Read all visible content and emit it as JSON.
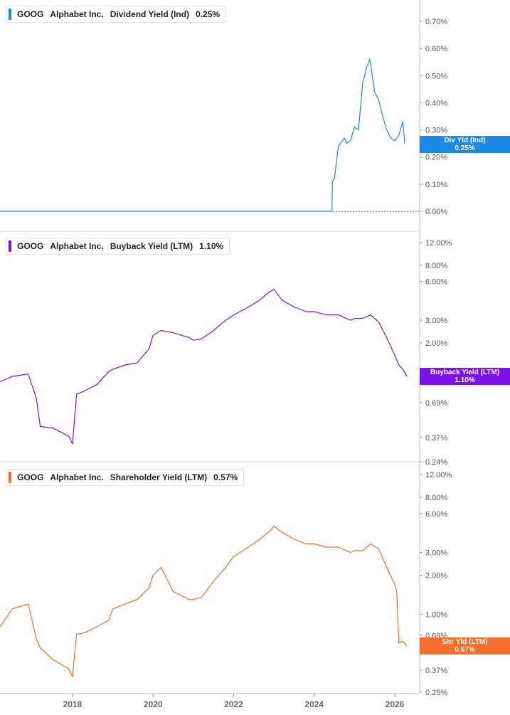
{
  "x_axis": {
    "tick_labels": [
      "2018",
      "2020",
      "2022",
      "2024",
      "2026"
    ]
  },
  "panels": [
    {
      "legend": {
        "ticker": "GOOG",
        "company": "Alphabet Inc.",
        "metric": "Dividend Yield (Ind)",
        "value": "0.25%"
      },
      "tag": {
        "name": "Div Yld (Ind)",
        "value": "0.25%"
      },
      "tick_labels": [
        "0.70%",
        "0.60%",
        "0.50%",
        "0.40%",
        "0.30%",
        "0.20%",
        "0.10%",
        "0.00%"
      ],
      "color": "#1e88e5"
    },
    {
      "legend": {
        "ticker": "GOOG",
        "company": "Alphabet Inc.",
        "metric": "Buyback Yield (LTM)",
        "value": "1.10%"
      },
      "tag": {
        "name": "Buyback Yield (LTM)",
        "value": "1.10%"
      },
      "tick_labels": [
        "12.00%",
        "8.00%",
        "6.00%",
        "3.00%",
        "2.00%",
        "0.69%",
        "0.37%",
        "0.24%"
      ],
      "color": "#7c12e8"
    },
    {
      "legend": {
        "ticker": "GOOG",
        "company": "Alphabet Inc.",
        "metric": "Shareholder Yield (LTM)",
        "value": "0.57%"
      },
      "tag": {
        "name": "Shr Yld (LTM)",
        "value": "0.57%"
      },
      "tick_labels": [
        "12.00%",
        "8.00%",
        "6.00%",
        "3.00%",
        "2.00%",
        "1.00%",
        "0.69%",
        "0.37%",
        "0.25%"
      ],
      "color": "#f26e2a"
    }
  ],
  "chart_data": [
    {
      "type": "line",
      "series": [
        {
          "name": "Dividend Yield (Ind)",
          "color": "#1e88e5"
        }
      ],
      "x": [
        2016.2,
        2017,
        2018,
        2019,
        2020,
        2021,
        2022,
        2023,
        2024,
        2024.44,
        2024.45,
        2024.5,
        2024.6,
        2024.7,
        2024.75,
        2024.8,
        2024.9,
        2025.0,
        2025.1,
        2025.2,
        2025.3,
        2025.38,
        2025.45,
        2025.5,
        2025.6,
        2025.7,
        2025.8,
        2025.9,
        2026.0,
        2026.1,
        2026.2,
        2026.25
      ],
      "values": [
        0,
        0,
        0,
        0,
        0,
        0,
        0,
        0,
        0,
        0,
        0.11,
        0.12,
        0.24,
        0.26,
        0.27,
        0.25,
        0.26,
        0.31,
        0.3,
        0.47,
        0.53,
        0.56,
        0.49,
        0.44,
        0.41,
        0.35,
        0.3,
        0.27,
        0.26,
        0.28,
        0.33,
        0.25
      ],
      "ylim": [
        0,
        0.7
      ]
    },
    {
      "type": "line",
      "scale": "log",
      "series": [
        {
          "name": "Buyback Yield (LTM)",
          "color": "#7c12e8"
        }
      ],
      "x": [
        2016.2,
        2016.5,
        2016.9,
        2017.1,
        2017.2,
        2017.5,
        2017.9,
        2018.0,
        2018.1,
        2018.3,
        2018.6,
        2018.9,
        2019.0,
        2019.3,
        2019.6,
        2019.9,
        2020.0,
        2020.2,
        2020.5,
        2020.9,
        2021.0,
        2021.2,
        2021.5,
        2021.8,
        2022.0,
        2022.3,
        2022.6,
        2022.9,
        2023.0,
        2023.2,
        2023.5,
        2023.8,
        2024.0,
        2024.3,
        2024.6,
        2024.9,
        2025.0,
        2025.2,
        2025.4,
        2025.6,
        2025.8,
        2026.0,
        2026.1,
        2026.2,
        2026.3
      ],
      "values": [
        1.0,
        1.1,
        1.15,
        0.75,
        0.45,
        0.44,
        0.38,
        0.33,
        0.8,
        0.85,
        0.95,
        1.2,
        1.25,
        1.35,
        1.4,
        1.8,
        2.3,
        2.5,
        2.4,
        2.2,
        2.1,
        2.15,
        2.5,
        3.0,
        3.3,
        3.7,
        4.2,
        5.0,
        5.2,
        4.3,
        3.8,
        3.5,
        3.5,
        3.3,
        3.3,
        3.0,
        3.1,
        3.1,
        3.3,
        2.9,
        2.2,
        1.6,
        1.35,
        1.25,
        1.1
      ],
      "ylim": [
        0.24,
        12
      ]
    },
    {
      "type": "line",
      "scale": "log",
      "series": [
        {
          "name": "Shareholder Yield (LTM)",
          "color": "#f26e2a"
        }
      ],
      "x": [
        2016.2,
        2016.5,
        2016.9,
        2017.1,
        2017.2,
        2017.5,
        2017.9,
        2018.0,
        2018.1,
        2018.3,
        2018.6,
        2018.9,
        2019.0,
        2019.3,
        2019.6,
        2019.9,
        2020.0,
        2020.2,
        2020.5,
        2020.9,
        2021.0,
        2021.2,
        2021.5,
        2021.8,
        2022.0,
        2022.3,
        2022.6,
        2022.9,
        2023.0,
        2023.2,
        2023.5,
        2023.8,
        2024.0,
        2024.3,
        2024.6,
        2024.9,
        2025.0,
        2025.2,
        2025.4,
        2025.6,
        2025.8,
        2026.0,
        2026.05,
        2026.1,
        2026.2,
        2026.3
      ],
      "values": [
        0.8,
        1.1,
        1.2,
        0.65,
        0.55,
        0.45,
        0.38,
        0.33,
        0.7,
        0.72,
        0.8,
        0.9,
        1.1,
        1.2,
        1.3,
        1.6,
        2.0,
        2.3,
        1.5,
        1.3,
        1.3,
        1.35,
        1.8,
        2.3,
        2.8,
        3.2,
        3.7,
        4.4,
        4.8,
        4.3,
        3.8,
        3.5,
        3.5,
        3.3,
        3.3,
        3.0,
        3.1,
        3.1,
        3.5,
        3.2,
        2.3,
        1.7,
        1.5,
        0.6,
        0.62,
        0.57
      ],
      "ylim": [
        0.25,
        12
      ]
    }
  ]
}
